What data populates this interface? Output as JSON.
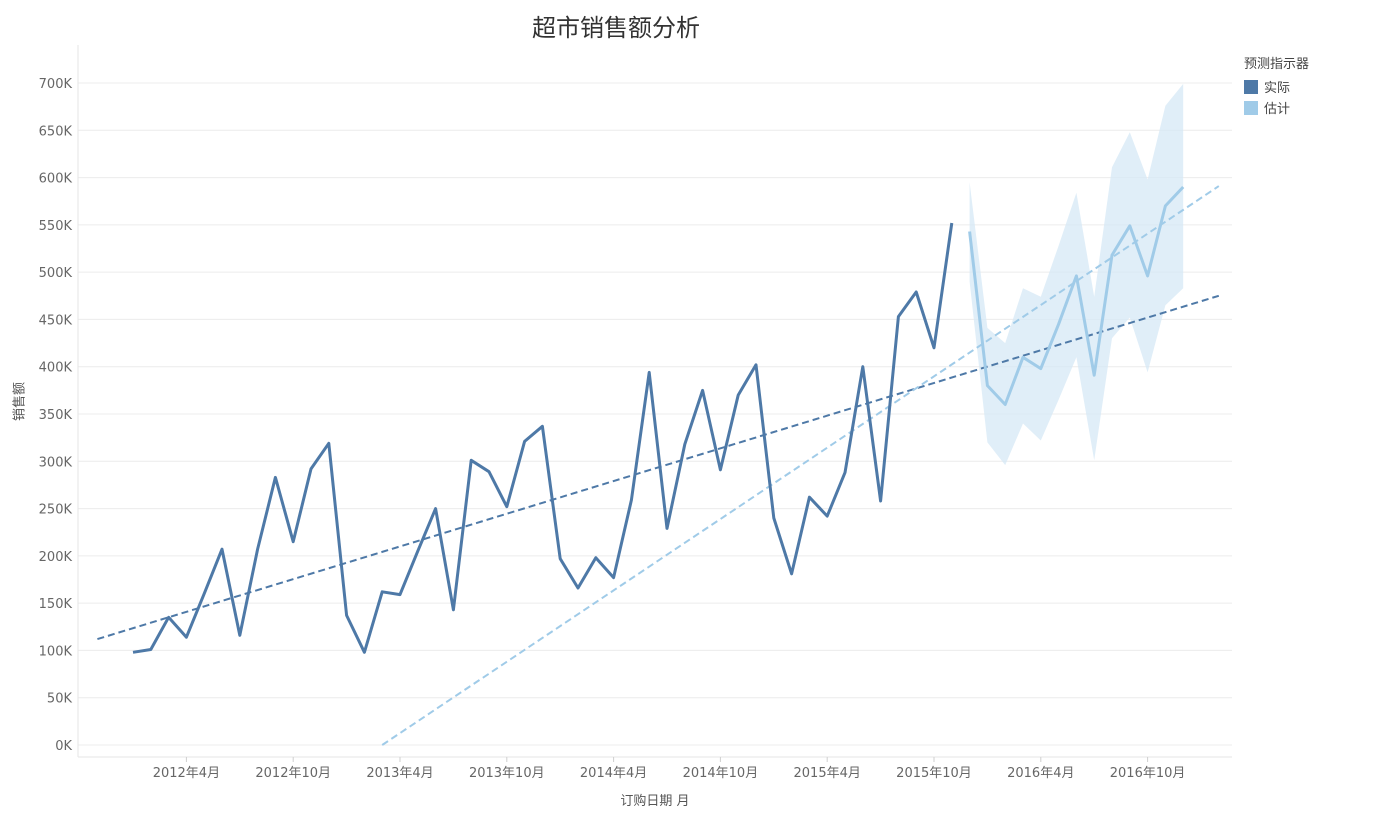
{
  "chart_data": {
    "type": "line",
    "title": "超市销售额分析",
    "xlabel": "订购日期 月",
    "ylabel": "销售额",
    "ylim": [
      0,
      700000
    ],
    "y_ticks": [
      "0K",
      "50K",
      "100K",
      "150K",
      "200K",
      "250K",
      "300K",
      "350K",
      "400K",
      "450K",
      "500K",
      "550K",
      "600K",
      "650K",
      "700K"
    ],
    "x_tick_labels": [
      "2012年4月",
      "2012年10月",
      "2013年4月",
      "2013年10月",
      "2014年4月",
      "2014年10月",
      "2015年4月",
      "2015年10月",
      "2016年4月",
      "2016年10月"
    ],
    "grid": "horizontal",
    "legend_position": "top-right",
    "legend": {
      "title": "预测指示器",
      "items": [
        "实际",
        "估计"
      ]
    },
    "colors": {
      "actual": "#4e79a7",
      "estimate": "#a0cbe8",
      "band": "#d6e8f6"
    },
    "months": [
      "2012-01",
      "2012-02",
      "2012-03",
      "2012-04",
      "2012-05",
      "2012-06",
      "2012-07",
      "2012-08",
      "2012-09",
      "2012-10",
      "2012-11",
      "2012-12",
      "2013-01",
      "2013-02",
      "2013-03",
      "2013-04",
      "2013-05",
      "2013-06",
      "2013-07",
      "2013-08",
      "2013-09",
      "2013-10",
      "2013-11",
      "2013-12",
      "2014-01",
      "2014-02",
      "2014-03",
      "2014-04",
      "2014-05",
      "2014-06",
      "2014-07",
      "2014-08",
      "2014-09",
      "2014-10",
      "2014-11",
      "2014-12",
      "2015-01",
      "2015-02",
      "2015-03",
      "2015-04",
      "2015-05",
      "2015-06",
      "2015-07",
      "2015-08",
      "2015-09",
      "2015-10",
      "2015-11",
      "2015-12",
      "2016-01",
      "2016-02",
      "2016-03",
      "2016-04",
      "2016-05",
      "2016-06",
      "2016-07",
      "2016-08",
      "2016-09",
      "2016-10",
      "2016-11",
      "2016-12"
    ],
    "series": [
      {
        "name": "实际",
        "values": [
          98000,
          101000,
          135000,
          114000,
          160000,
          207000,
          116000,
          207000,
          283000,
          215000,
          292000,
          319000,
          137000,
          98000,
          162000,
          159000,
          205000,
          250000,
          143000,
          301000,
          289000,
          252000,
          321000,
          337000,
          197000,
          166000,
          198000,
          177000,
          259000,
          394000,
          229000,
          318000,
          375000,
          291000,
          370000,
          402000,
          240000,
          181000,
          262000,
          242000,
          288000,
          400000,
          258000,
          453000,
          479000,
          420000,
          552000
        ]
      },
      {
        "name": "估计",
        "values": [
          543000,
          380000,
          360000,
          410000,
          398000,
          445000,
          496000,
          391000,
          518000,
          549000,
          496000,
          570000,
          590000
        ],
        "lower": [
          490000,
          320000,
          296000,
          340000,
          322000,
          365000,
          410000,
          301000,
          430000,
          452000,
          394000,
          465000,
          483000
        ],
        "upper": [
          595000,
          441000,
          425000,
          483000,
          474000,
          528000,
          584000,
          474000,
          611000,
          648000,
          598000,
          676000,
          699000
        ]
      }
    ],
    "trend_lines": [
      {
        "name": "实际",
        "start_month": "2011-11",
        "start": 112000,
        "end_month": "2017-02",
        "end": 475000
      },
      {
        "name": "估计",
        "start_month": "2013-03",
        "start": 0,
        "end_month": "2017-02",
        "end": 591000
      }
    ]
  }
}
